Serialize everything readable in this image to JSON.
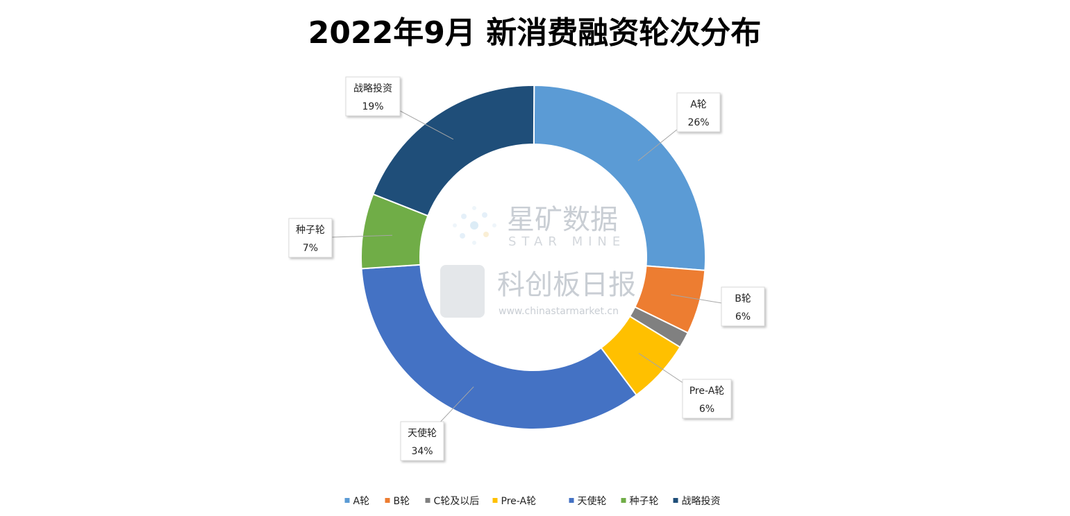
{
  "chart_data": {
    "type": "pie",
    "variant": "donut",
    "title": "2022年9月 新消费融资轮次分布",
    "categories": [
      "A轮",
      "B轮",
      "C轮及以后",
      "Pre-A轮",
      "天使轮",
      "种子轮",
      "战略投资"
    ],
    "values": [
      26,
      6,
      1.5,
      6,
      34,
      7,
      19
    ],
    "data_labels": [
      "26%",
      "6%",
      "",
      "6%",
      "34%",
      "7%",
      "19%"
    ],
    "colors": [
      "#5B9BD5",
      "#ED7D31",
      "#808080",
      "#FFC000",
      "#4472C4",
      "#70AD47",
      "#1F4E79"
    ],
    "legend_position": "bottom"
  },
  "watermark": {
    "brand1": "星矿数据",
    "brand1_en": "STAR MINE",
    "brand2": "科创板日报",
    "url": "www.chinastarmarket.cn"
  }
}
